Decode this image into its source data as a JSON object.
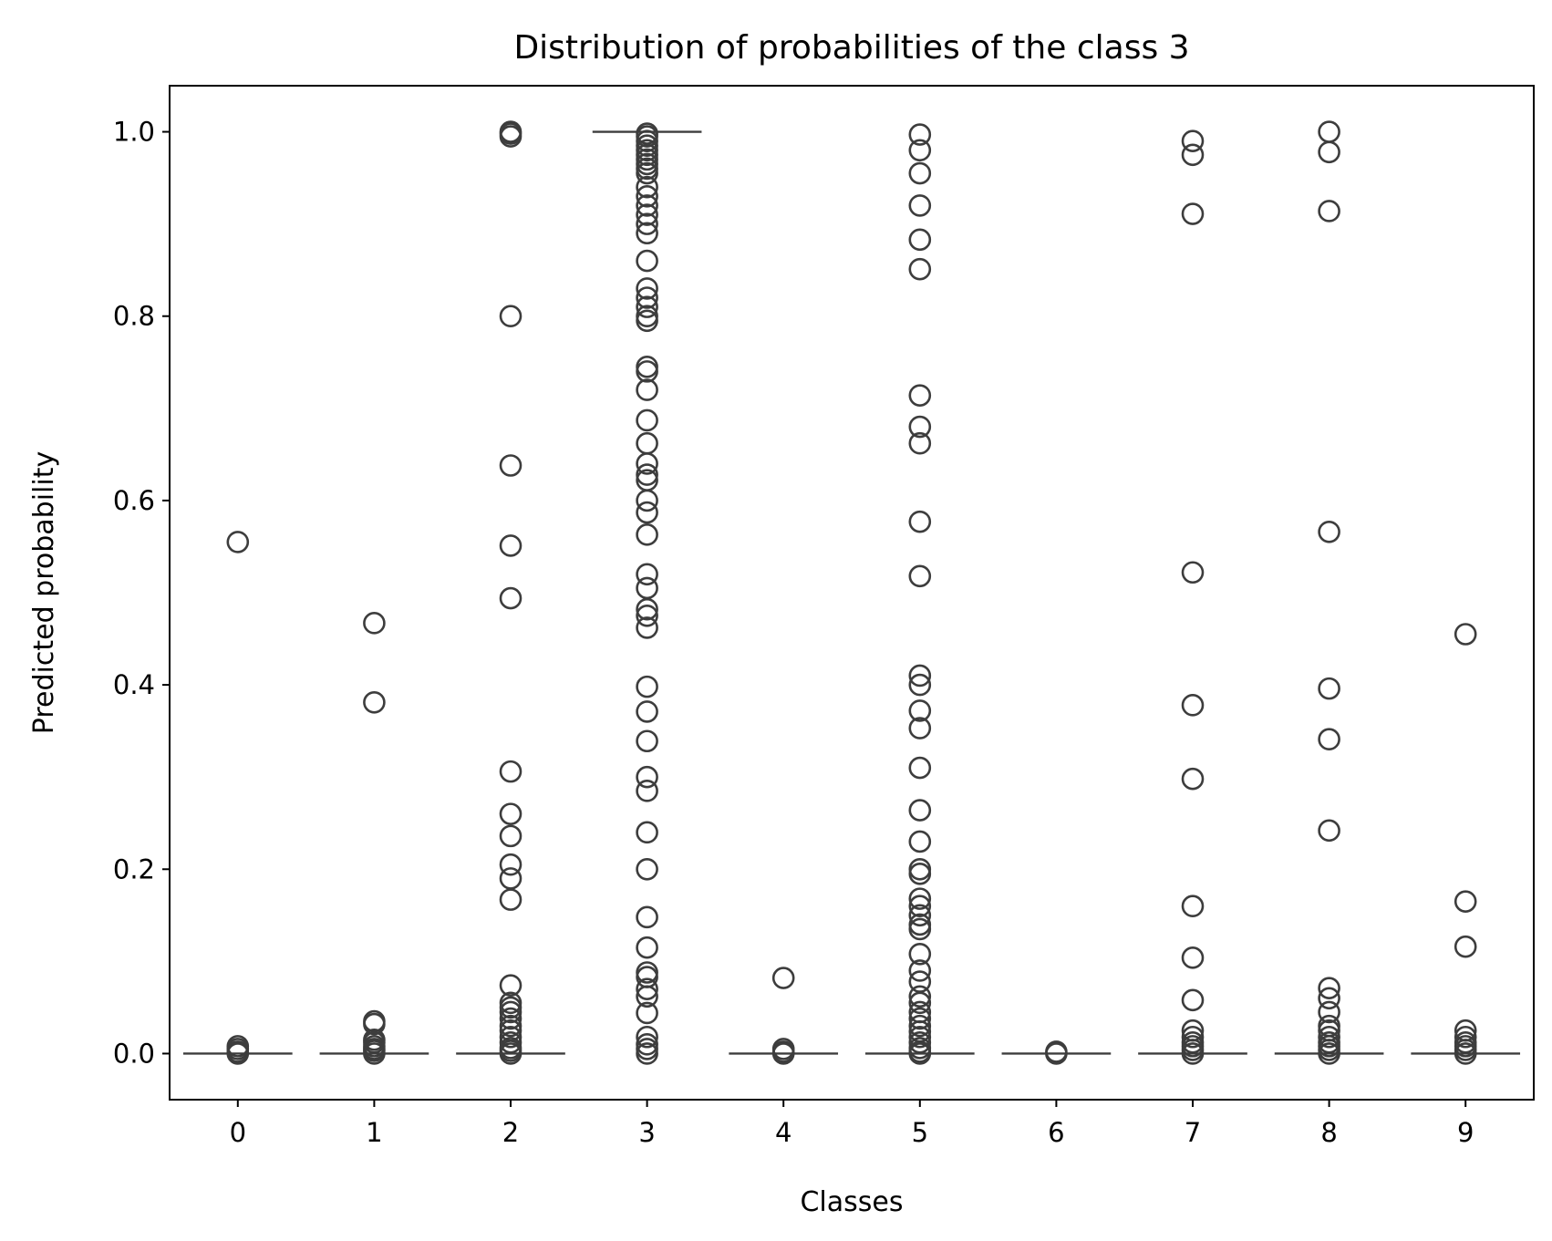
{
  "chart_data": {
    "type": "box",
    "title": "Distribution of probabilities of the class 3",
    "xlabel": "Classes",
    "ylabel": "Predicted probability",
    "categories": [
      "0",
      "1",
      "2",
      "3",
      "4",
      "5",
      "6",
      "7",
      "8",
      "9"
    ],
    "ylim": [
      -0.05,
      1.05
    ],
    "yticks": [
      0.0,
      0.2,
      0.4,
      0.6,
      0.8,
      1.0
    ],
    "ytick_labels": [
      "0.0",
      "0.2",
      "0.4",
      "0.6",
      "0.8",
      "1.0"
    ],
    "grid": false,
    "colors": {
      "box": "#3d3d3d",
      "marker_fill": "none"
    },
    "medians": [
      0.0,
      0.0,
      0.0,
      1.0,
      0.0,
      0.0,
      0.0,
      0.0,
      0.0,
      0.0
    ],
    "outliers": [
      [
        0.555,
        0.008,
        0.005,
        0.002,
        0.0
      ],
      [
        0.467,
        0.381,
        0.035,
        0.032,
        0.015,
        0.012,
        0.008,
        0.005,
        0.003,
        0.0
      ],
      [
        1.0,
        0.998,
        0.995,
        0.8,
        0.638,
        0.551,
        0.494,
        0.306,
        0.26,
        0.236,
        0.205,
        0.19,
        0.167,
        0.074,
        0.055,
        0.05,
        0.045,
        0.038,
        0.03,
        0.025,
        0.018,
        0.012,
        0.006,
        0.003,
        0.0
      ],
      [
        0.998,
        0.995,
        0.99,
        0.985,
        0.98,
        0.975,
        0.97,
        0.965,
        0.96,
        0.955,
        0.94,
        0.93,
        0.92,
        0.91,
        0.9,
        0.89,
        0.86,
        0.83,
        0.82,
        0.81,
        0.8,
        0.795,
        0.745,
        0.74,
        0.72,
        0.687,
        0.662,
        0.64,
        0.628,
        0.622,
        0.6,
        0.587,
        0.563,
        0.52,
        0.505,
        0.482,
        0.475,
        0.462,
        0.398,
        0.371,
        0.339,
        0.3,
        0.285,
        0.24,
        0.2,
        0.148,
        0.115,
        0.088,
        0.083,
        0.07,
        0.062,
        0.044,
        0.018,
        0.01,
        0.005,
        0.0
      ],
      [
        0.082,
        0.005,
        0.002,
        0.0
      ],
      [
        0.997,
        0.98,
        0.955,
        0.92,
        0.883,
        0.851,
        0.714,
        0.68,
        0.662,
        0.577,
        0.518,
        0.41,
        0.4,
        0.372,
        0.353,
        0.31,
        0.264,
        0.23,
        0.2,
        0.195,
        0.168,
        0.16,
        0.15,
        0.14,
        0.135,
        0.108,
        0.09,
        0.078,
        0.062,
        0.055,
        0.045,
        0.038,
        0.03,
        0.024,
        0.018,
        0.012,
        0.006,
        0.002,
        0.0
      ],
      [
        0.002,
        0.0
      ],
      [
        0.99,
        0.975,
        0.911,
        0.522,
        0.378,
        0.298,
        0.16,
        0.104,
        0.058,
        0.025,
        0.018,
        0.012,
        0.008,
        0.004,
        0.0
      ],
      [
        1.0,
        0.978,
        0.914,
        0.566,
        0.396,
        0.341,
        0.242,
        0.071,
        0.06,
        0.045,
        0.03,
        0.025,
        0.018,
        0.012,
        0.008,
        0.004,
        0.0
      ],
      [
        0.455,
        0.165,
        0.116,
        0.025,
        0.018,
        0.012,
        0.008,
        0.004,
        0.0
      ]
    ]
  }
}
